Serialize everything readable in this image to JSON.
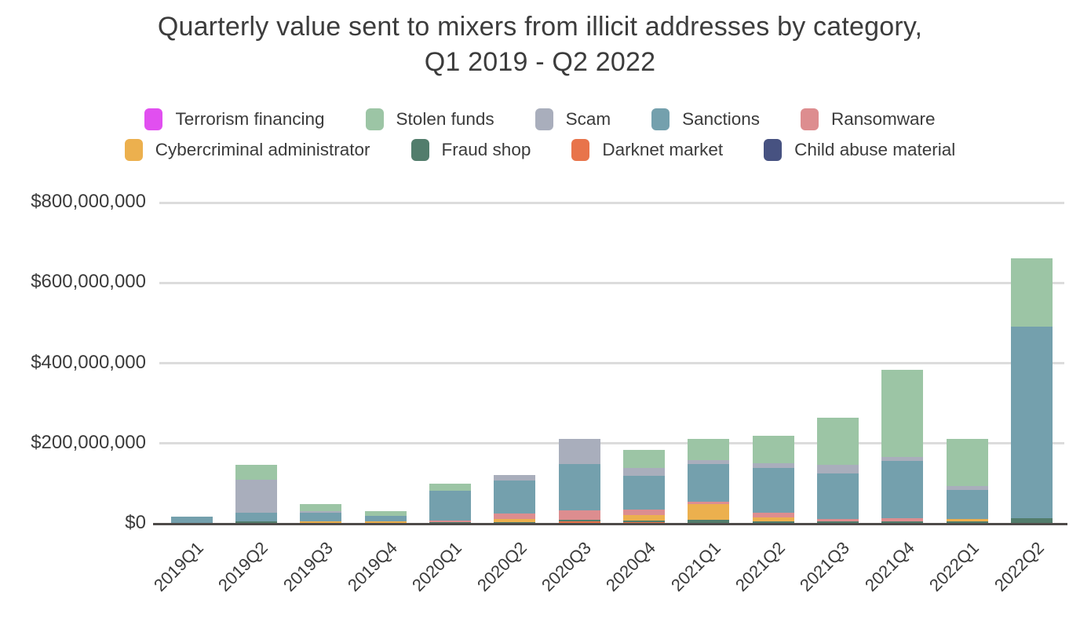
{
  "title": {
    "line1": "Quarterly value sent to mixers from illicit addresses by category,",
    "line2": "Q1 2019 - Q2 2022"
  },
  "legend": {
    "rows": [
      [
        "Terrorism financing",
        "Stolen funds",
        "Scam",
        "Sanctions",
        "Ransomware"
      ],
      [
        "Cybercriminal administrator",
        "Fraud shop",
        "Darknet market",
        "Child abuse material"
      ]
    ]
  },
  "chart_data": {
    "type": "bar",
    "stacked": true,
    "title": "Quarterly value sent to mixers from illicit addresses by category, Q1 2019 - Q2 2022",
    "xlabel": "",
    "ylabel": "",
    "unit": "USD millions",
    "ylim": [
      0,
      800000000
    ],
    "grid": "horizontal",
    "legend_position": "top",
    "yticks": [
      {
        "value": 800000000,
        "label": "$800,000,000"
      },
      {
        "value": 600000000,
        "label": "$600,000,000"
      },
      {
        "value": 400000000,
        "label": "$400,000,000"
      },
      {
        "value": 200000000,
        "label": "$200,000,000"
      },
      {
        "value": 0,
        "label": "$0"
      }
    ],
    "categories": [
      "2019Q1",
      "2019Q2",
      "2019Q3",
      "2019Q4",
      "2020Q1",
      "2020Q2",
      "2020Q3",
      "2020Q4",
      "2021Q1",
      "2021Q2",
      "2021Q3",
      "2021Q4",
      "2022Q1",
      "2022Q2"
    ],
    "stack_order_note": "series listed bottom-to-top of each stacked bar, values in USD millions (estimated from pixels)",
    "series": [
      {
        "name": "Child abuse material",
        "color": "#475281",
        "values": [
          0,
          0,
          0,
          0,
          0,
          0,
          3,
          0,
          0,
          0,
          0,
          0,
          0,
          0
        ]
      },
      {
        "name": "Darknet market",
        "color": "#e8744b",
        "values": [
          0,
          0,
          0,
          0,
          0,
          0,
          4,
          4,
          2,
          0,
          0,
          0,
          0,
          0
        ]
      },
      {
        "name": "Fraud shop",
        "color": "#527d6c",
        "values": [
          2,
          6,
          0,
          0,
          4,
          4,
          4,
          4,
          8,
          6,
          5,
          6,
          5,
          14
        ]
      },
      {
        "name": "Cybercriminal administrator",
        "color": "#ecb04e",
        "values": [
          0,
          0,
          6,
          6,
          0,
          8,
          0,
          14,
          39,
          9,
          0,
          0,
          6,
          0
        ]
      },
      {
        "name": "Ransomware",
        "color": "#dd8d8f",
        "values": [
          0,
          0,
          0,
          0,
          4,
          14,
          22,
          14,
          6,
          12,
          6,
          8,
          0,
          0
        ]
      },
      {
        "name": "Sanctions",
        "color": "#74a0ad",
        "values": [
          16,
          22,
          22,
          13,
          75,
          82,
          116,
          84,
          94,
          112,
          115,
          143,
          74,
          476
        ]
      },
      {
        "name": "Scam",
        "color": "#a9aebc",
        "values": [
          0,
          82,
          4,
          0,
          0,
          14,
          63,
          20,
          10,
          11,
          21,
          10,
          9,
          0
        ]
      },
      {
        "name": "Stolen funds",
        "color": "#9cc5a5",
        "values": [
          0,
          37,
          18,
          12,
          18,
          0,
          0,
          45,
          53,
          69,
          118,
          216,
          118,
          171
        ]
      },
      {
        "name": "Terrorism financing",
        "color": "#e14ff0",
        "values": [
          0,
          0,
          0,
          0,
          0,
          0,
          0,
          0,
          0,
          0,
          0,
          0,
          0,
          0
        ]
      }
    ],
    "totals": [
      18,
      147,
      50,
      31,
      101,
      122,
      212,
      185,
      212,
      219,
      265,
      383,
      212,
      661
    ]
  }
}
